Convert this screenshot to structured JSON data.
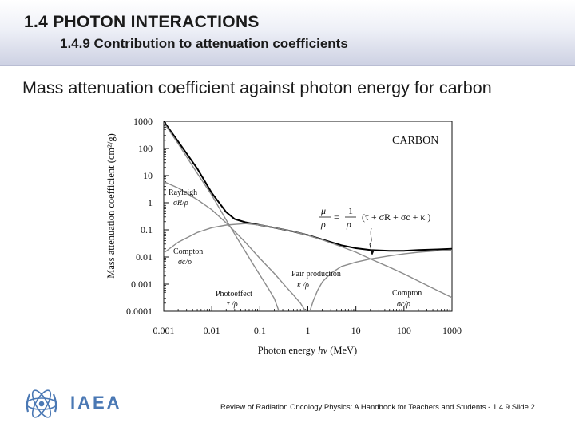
{
  "slide": {
    "title": "1.4  PHOTON INTERACTIONS",
    "subtitle": "1.4.9 Contribution to attenuation coefficients",
    "heading": "Mass attenuation coefficient against photon energy for carbon"
  },
  "footer": {
    "logo_text": "IAEA",
    "citation": "Review of Radiation Oncology Physics: A Handbook for Teachers and Students - 1.4.9 Slide 2"
  },
  "colors": {
    "total_curve": "#000000",
    "component_curves": "#8c8c8c",
    "logo_blue": "#4a78b4"
  },
  "chart_data": {
    "type": "line",
    "x_scale": "log",
    "y_scale": "log",
    "xlim": [
      0.001,
      1000
    ],
    "ylim": [
      0.0001,
      1000
    ],
    "x_ticks": [
      "0.001",
      "0.01",
      "0.1",
      "1",
      "10",
      "100",
      "1000"
    ],
    "y_ticks": [
      "1000",
      "100",
      "10",
      "1",
      "0.1",
      "0.01",
      "0.001",
      "0.0001"
    ],
    "xlabel_parts": [
      "Photon energy ",
      "hν",
      "  (MeV)"
    ],
    "ylabel": "Mass attenuation coefficient (cm²/g)",
    "element_label": "CARBON",
    "equation_lhs_num": "μ",
    "equation_lhs_den": "ρ",
    "equation_eq": "=",
    "equation_frac_num": "1",
    "equation_frac_den": "ρ",
    "equation_rhs": "(τ + σR + σc + κ )",
    "series": [
      {
        "id": "total",
        "points": [
          [
            0.001,
            1000
          ],
          [
            0.002,
            180
          ],
          [
            0.005,
            18
          ],
          [
            0.01,
            2.3
          ],
          [
            0.02,
            0.45
          ],
          [
            0.03,
            0.25
          ],
          [
            0.05,
            0.19
          ],
          [
            0.1,
            0.15
          ],
          [
            0.2,
            0.12
          ],
          [
            0.5,
            0.087
          ],
          [
            1,
            0.064
          ],
          [
            2,
            0.044
          ],
          [
            5,
            0.027
          ],
          [
            10,
            0.021
          ],
          [
            20,
            0.018
          ],
          [
            50,
            0.017
          ],
          [
            100,
            0.017
          ],
          [
            200,
            0.018
          ],
          [
            500,
            0.019
          ],
          [
            1000,
            0.02
          ]
        ]
      },
      {
        "id": "rayleigh",
        "points": [
          [
            0.001,
            6
          ],
          [
            0.002,
            3.5
          ],
          [
            0.005,
            1.3
          ],
          [
            0.01,
            0.55
          ],
          [
            0.02,
            0.18
          ],
          [
            0.05,
            0.035
          ],
          [
            0.1,
            0.009
          ],
          [
            0.2,
            0.0025
          ],
          [
            0.35,
            0.0008
          ],
          [
            0.5,
            0.0004
          ],
          [
            0.7,
            0.0002
          ],
          [
            0.9,
            0.0001
          ]
        ]
      },
      {
        "id": "photoeffect",
        "points": [
          [
            0.001,
            900
          ],
          [
            0.002,
            150
          ],
          [
            0.005,
            12
          ],
          [
            0.01,
            1.9
          ],
          [
            0.02,
            0.23
          ],
          [
            0.03,
            0.07
          ],
          [
            0.05,
            0.016
          ],
          [
            0.07,
            0.006
          ],
          [
            0.1,
            0.0022
          ],
          [
            0.15,
            0.0007
          ],
          [
            0.2,
            0.0003
          ],
          [
            0.25,
            0.0001
          ]
        ]
      },
      {
        "id": "compton",
        "points": [
          [
            0.001,
            0.014
          ],
          [
            0.002,
            0.035
          ],
          [
            0.005,
            0.08
          ],
          [
            0.01,
            0.12
          ],
          [
            0.02,
            0.15
          ],
          [
            0.05,
            0.17
          ],
          [
            0.1,
            0.15
          ],
          [
            0.2,
            0.12
          ],
          [
            0.5,
            0.087
          ],
          [
            1,
            0.063
          ],
          [
            2,
            0.043
          ],
          [
            5,
            0.024
          ],
          [
            10,
            0.015
          ],
          [
            20,
            0.0085
          ],
          [
            50,
            0.0042
          ],
          [
            100,
            0.0024
          ],
          [
            200,
            0.0013
          ],
          [
            500,
            0.00058
          ],
          [
            1000,
            0.00032
          ]
        ]
      },
      {
        "id": "pair",
        "points": [
          [
            1.1,
            0.0001
          ],
          [
            1.3,
            0.00025
          ],
          [
            1.6,
            0.0006
          ],
          [
            2,
            0.0012
          ],
          [
            3,
            0.0025
          ],
          [
            5,
            0.0045
          ],
          [
            10,
            0.0065
          ],
          [
            20,
            0.0085
          ],
          [
            50,
            0.011
          ],
          [
            100,
            0.013
          ],
          [
            200,
            0.015
          ],
          [
            500,
            0.017
          ],
          [
            1000,
            0.018
          ]
        ]
      }
    ],
    "labels": {
      "rayleigh": "Rayleigh",
      "rayleigh_symbol": "σR/ρ",
      "compton_left": "Compton",
      "compton_left_symbol": "σc/ρ",
      "photoeffect": "Photoeffect",
      "photoeffect_symbol": "τ /ρ",
      "pair": "Pair production",
      "pair_symbol": "κ /ρ",
      "compton_right": "Compton",
      "compton_right_symbol": "σc/ρ"
    }
  }
}
